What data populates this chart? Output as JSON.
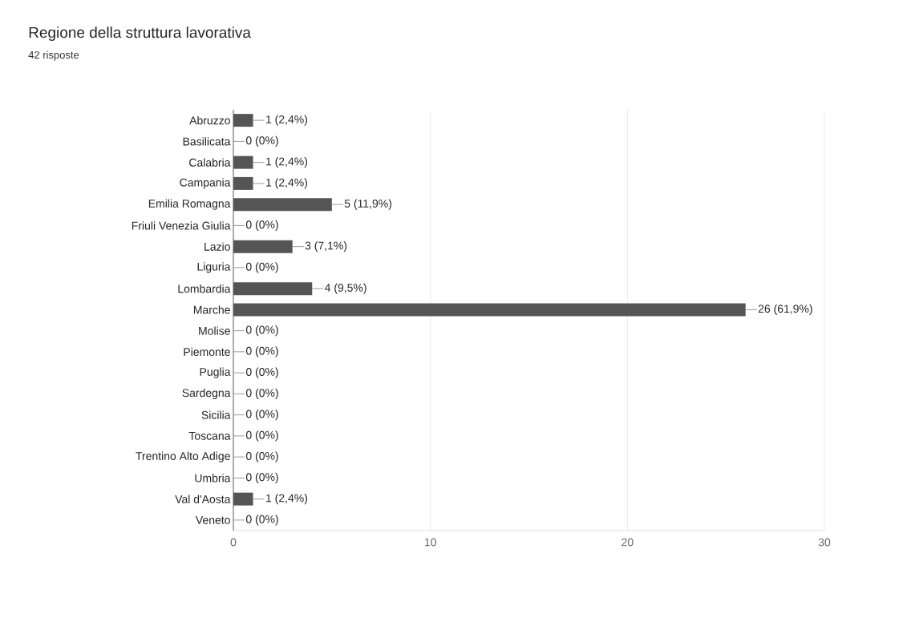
{
  "chart_data": {
    "type": "bar",
    "orientation": "horizontal",
    "title": "Regione della struttura lavorativa",
    "subtitle": "42 risposte",
    "categories": [
      "Abruzzo",
      "Basilicata",
      "Calabria",
      "Campania",
      "Emilia Romagna",
      "Friuli Venezia Giulia",
      "Lazio",
      "Liguria",
      "Lombardia",
      "Marche",
      "Molise",
      "Piemonte",
      "Puglia",
      "Sardegna",
      "Sicilia",
      "Toscana",
      "Trentino Alto Adige",
      "Umbria",
      "Val d'Aosta",
      "Veneto"
    ],
    "values": [
      1,
      0,
      1,
      1,
      5,
      0,
      3,
      0,
      4,
      26,
      0,
      0,
      0,
      0,
      0,
      0,
      0,
      0,
      1,
      0
    ],
    "value_labels": [
      "1 (2,4%)",
      "0 (0%)",
      "1 (2,4%)",
      "1 (2,4%)",
      "5 (11,9%)",
      "0 (0%)",
      "3 (7,1%)",
      "0 (0%)",
      "4 (9,5%)",
      "26 (61,9%)",
      "0 (0%)",
      "0 (0%)",
      "0 (0%)",
      "0 (0%)",
      "0 (0%)",
      "0 (0%)",
      "0 (0%)",
      "0 (0%)",
      "1 (2,4%)",
      "0 (0%)"
    ],
    "color": "#555555",
    "xlim": [
      0,
      30
    ],
    "xticks": [
      0,
      10,
      20,
      30
    ],
    "grid": "x"
  }
}
